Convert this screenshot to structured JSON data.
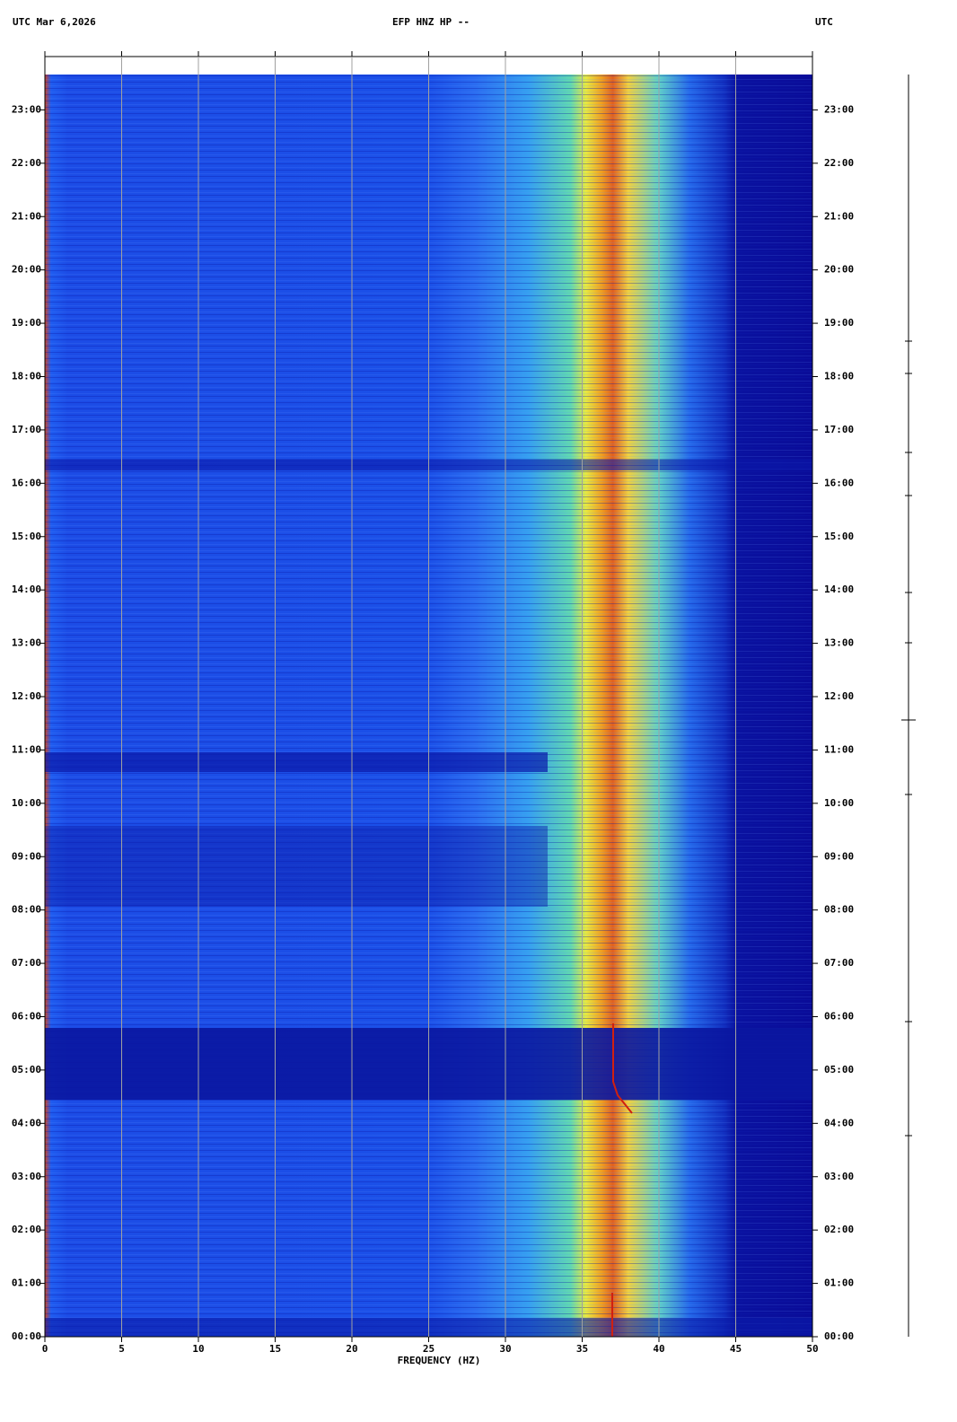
{
  "chart_data": {
    "type": "spectrogram",
    "title_left": "UTC  Mar 6,2026",
    "title": "EFP HNZ HP --",
    "title_right": "UTC",
    "xlabel": "FREQUENCY (HZ)",
    "xlim": [
      0,
      50
    ],
    "xticks": [
      0,
      5,
      10,
      15,
      20,
      25,
      30,
      35,
      40,
      45,
      50
    ],
    "ylim": [
      0,
      24
    ],
    "yticks": [
      {
        "value": 0,
        "label": "00:00"
      },
      {
        "value": 1,
        "label": "01:00"
      },
      {
        "value": 2,
        "label": "02:00"
      },
      {
        "value": 3,
        "label": "03:00"
      },
      {
        "value": 4,
        "label": "04:00"
      },
      {
        "value": 5,
        "label": "05:00"
      },
      {
        "value": 6,
        "label": "06:00"
      },
      {
        "value": 7,
        "label": "07:00"
      },
      {
        "value": 8,
        "label": "08:00"
      },
      {
        "value": 9,
        "label": "09:00"
      },
      {
        "value": 10,
        "label": "10:00"
      },
      {
        "value": 11,
        "label": "11:00"
      },
      {
        "value": 12,
        "label": "12:00"
      },
      {
        "value": 13,
        "label": "13:00"
      },
      {
        "value": 14,
        "label": "14:00"
      },
      {
        "value": 15,
        "label": "15:00"
      },
      {
        "value": 16,
        "label": "16:00"
      },
      {
        "value": 17,
        "label": "17:00"
      },
      {
        "value": 18,
        "label": "18:00"
      },
      {
        "value": 19,
        "label": "19:00"
      },
      {
        "value": 20,
        "label": "20:00"
      },
      {
        "value": 21,
        "label": "21:00"
      },
      {
        "value": 22,
        "label": "22:00"
      },
      {
        "value": 23,
        "label": "23:00"
      }
    ],
    "grid": true
  }
}
